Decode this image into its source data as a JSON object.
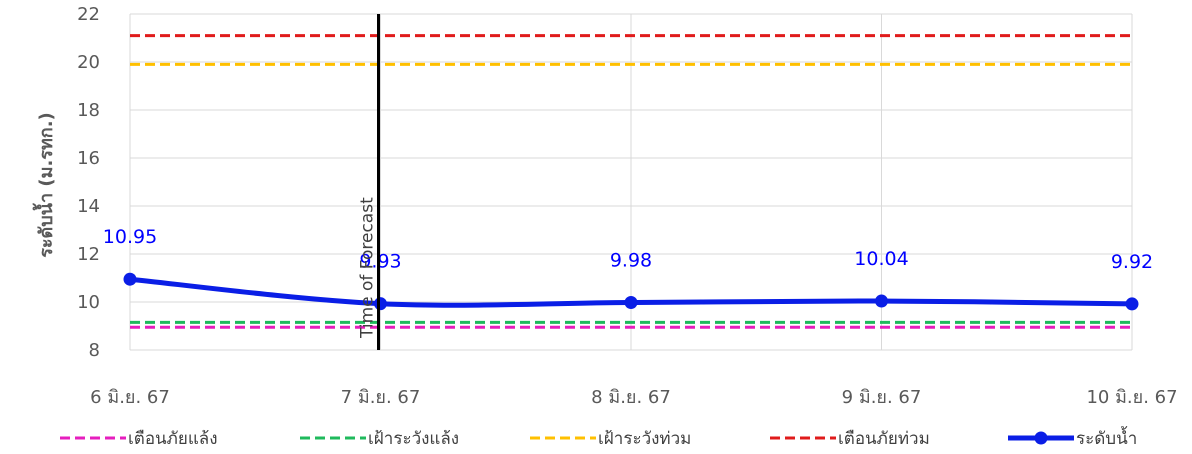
{
  "chart_data": {
    "type": "line",
    "categories": [
      "6 มิ.ย. 67",
      "7 มิ.ย. 67",
      "8 มิ.ย. 67",
      "9 มิ.ย. 67",
      "10 มิ.ย. 67"
    ],
    "ylabel": "ระดับน้ำ (ม.รทก.)",
    "ylim": [
      8,
      22
    ],
    "yticks": [
      8,
      10,
      12,
      14,
      16,
      18,
      20,
      22
    ],
    "grid": true,
    "legend_position": "bottom",
    "forecast_marker": {
      "label": "Time of Forecast",
      "category": "7 มิ.ย. 67"
    },
    "series": [
      {
        "name": "เตือนภัยแล้ง",
        "style": "dashed",
        "color": "#e61ebe",
        "values": [
          8.95,
          8.95,
          8.95,
          8.95,
          8.95
        ]
      },
      {
        "name": "เฝ้าระวังแล้ง",
        "style": "dashed",
        "color": "#1fba5c",
        "values": [
          9.15,
          9.15,
          9.15,
          9.15,
          9.15
        ]
      },
      {
        "name": "เฝ้าระวังท่วม",
        "style": "dashed",
        "color": "#ffc000",
        "values": [
          19.9,
          19.9,
          19.9,
          19.9,
          19.9
        ]
      },
      {
        "name": "เตือนภัยท่วม",
        "style": "dashed",
        "color": "#e01b1b",
        "values": [
          21.1,
          21.1,
          21.1,
          21.1,
          21.1
        ]
      },
      {
        "name": "ระดับน้ำ",
        "style": "solid-marker",
        "color": "#0a1ee6",
        "values": [
          10.95,
          9.93,
          9.98,
          10.04,
          9.92
        ],
        "labels": [
          "10.95",
          "9.93",
          "9.98",
          "10.04",
          "9.92"
        ]
      }
    ]
  }
}
